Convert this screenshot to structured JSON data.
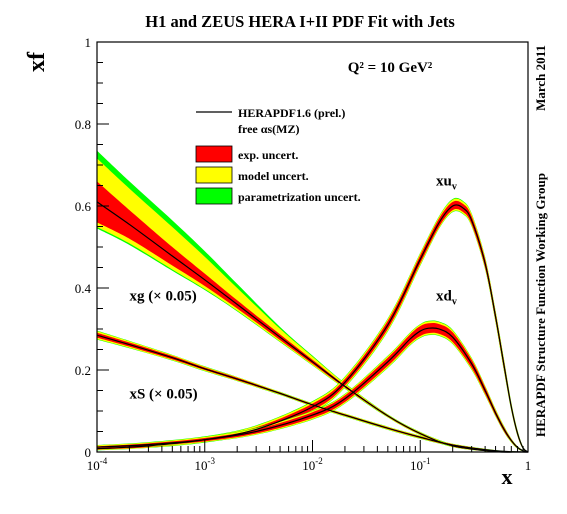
{
  "chart_data": {
    "type": "line",
    "title": "H1 and ZEUS HERA I+II PDF Fit with Jets",
    "ylabel": "xf",
    "xlabel": "x",
    "x_scale": "log",
    "xlim": [
      0.0001,
      1
    ],
    "ylim": [
      0,
      1
    ],
    "x_ticks": [
      "10^-4",
      "10^-3",
      "10^-2",
      "10^-1",
      "1"
    ],
    "y_ticks": [
      "0",
      "0.2",
      "0.4",
      "0.6",
      "0.8",
      "1"
    ],
    "scale_label": "Q² = 10 GeV²",
    "side_labels": {
      "date": "March 2011",
      "group": "HERAPDF Structure Function Working Group"
    },
    "legend": {
      "placement": "upper-center",
      "entries": [
        {
          "kind": "line",
          "label": "HERAPDF1.6 (prel.)",
          "color": "#000000"
        },
        {
          "kind": "text",
          "label": "free αs(MZ)"
        },
        {
          "kind": "box",
          "label": "exp. uncert.",
          "color": "#ff0000"
        },
        {
          "kind": "box",
          "label": "model uncert.",
          "color": "#ffff00"
        },
        {
          "kind": "box",
          "label": "parametrization uncert.",
          "color": "#00ff00"
        }
      ]
    },
    "band_colors": {
      "param": "#00ff00",
      "model": "#ffff00",
      "exp": "#ff0000",
      "central": "#000000"
    },
    "series": [
      {
        "name": "xg (× 0.05)",
        "label_pos": {
          "x": 0.0002,
          "y": 0.37
        },
        "x": [
          0.0001,
          0.0002,
          0.0005,
          0.001,
          0.002,
          0.005,
          0.01,
          0.02,
          0.05,
          0.1,
          0.2,
          0.5,
          0.8,
          1
        ],
        "central": [
          0.61,
          0.555,
          0.478,
          0.42,
          0.36,
          0.28,
          0.22,
          0.16,
          0.088,
          0.045,
          0.015,
          0.0008,
          5e-05,
          0
        ],
        "exp_lo": [
          0.56,
          0.52,
          0.455,
          0.405,
          0.35,
          0.273,
          0.215,
          0.157,
          0.086,
          0.043,
          0.013,
          0.0004,
          0,
          0
        ],
        "exp_hi": [
          0.66,
          0.59,
          0.5,
          0.435,
          0.37,
          0.287,
          0.225,
          0.163,
          0.09,
          0.047,
          0.017,
          0.0012,
          0.0001,
          0
        ],
        "band_lo": [
          0.545,
          0.505,
          0.442,
          0.395,
          0.343,
          0.268,
          0.211,
          0.154,
          0.084,
          0.041,
          0.012,
          0.0002,
          0,
          0
        ],
        "band_hi": [
          0.735,
          0.66,
          0.565,
          0.49,
          0.41,
          0.305,
          0.235,
          0.168,
          0.092,
          0.049,
          0.019,
          0.0016,
          0.0002,
          0
        ]
      },
      {
        "name": "xS (× 0.05)",
        "label_pos": {
          "x": 0.0002,
          "y": 0.13
        },
        "x": [
          0.0001,
          0.0002,
          0.0005,
          0.001,
          0.002,
          0.005,
          0.01,
          0.02,
          0.05,
          0.1,
          0.2,
          0.5,
          0.8,
          1
        ],
        "central": [
          0.285,
          0.262,
          0.23,
          0.203,
          0.178,
          0.143,
          0.115,
          0.09,
          0.058,
          0.036,
          0.017,
          0.003,
          0.0005,
          0
        ],
        "exp_lo": [
          0.279,
          0.257,
          0.226,
          0.2,
          0.175,
          0.141,
          0.113,
          0.088,
          0.056,
          0.034,
          0.015,
          0.002,
          0,
          0
        ],
        "exp_hi": [
          0.291,
          0.267,
          0.234,
          0.206,
          0.181,
          0.145,
          0.117,
          0.092,
          0.06,
          0.038,
          0.019,
          0.004,
          0.001,
          0
        ],
        "band_lo": [
          0.274,
          0.253,
          0.223,
          0.197,
          0.173,
          0.139,
          0.111,
          0.086,
          0.054,
          0.032,
          0.014,
          0.0015,
          0,
          0
        ],
        "band_hi": [
          0.296,
          0.271,
          0.237,
          0.209,
          0.183,
          0.147,
          0.119,
          0.094,
          0.062,
          0.04,
          0.02,
          0.0045,
          0.0012,
          0
        ]
      },
      {
        "name": "xu_v",
        "label_pos": {
          "x": 0.14,
          "y": 0.65
        },
        "x": [
          0.0001,
          0.0003,
          0.001,
          0.003,
          0.01,
          0.02,
          0.05,
          0.1,
          0.15,
          0.2,
          0.25,
          0.3,
          0.4,
          0.5,
          0.6,
          0.7,
          0.8,
          0.9,
          1
        ],
        "central": [
          0.008,
          0.015,
          0.03,
          0.055,
          0.11,
          0.17,
          0.31,
          0.47,
          0.56,
          0.6,
          0.595,
          0.565,
          0.46,
          0.33,
          0.21,
          0.11,
          0.045,
          0.01,
          0
        ],
        "exp_lo": [
          0.006,
          0.012,
          0.026,
          0.05,
          0.102,
          0.162,
          0.3,
          0.46,
          0.55,
          0.59,
          0.585,
          0.555,
          0.45,
          0.32,
          0.2,
          0.103,
          0.04,
          0.008,
          0
        ],
        "exp_hi": [
          0.01,
          0.018,
          0.034,
          0.06,
          0.118,
          0.178,
          0.32,
          0.48,
          0.57,
          0.61,
          0.605,
          0.575,
          0.47,
          0.34,
          0.22,
          0.117,
          0.05,
          0.012,
          0
        ],
        "band_lo": [
          0.004,
          0.01,
          0.023,
          0.046,
          0.097,
          0.157,
          0.294,
          0.454,
          0.545,
          0.585,
          0.58,
          0.55,
          0.445,
          0.315,
          0.195,
          0.1,
          0.038,
          0.007,
          0
        ],
        "band_hi": [
          0.013,
          0.021,
          0.038,
          0.065,
          0.124,
          0.184,
          0.326,
          0.486,
          0.576,
          0.617,
          0.612,
          0.582,
          0.476,
          0.345,
          0.225,
          0.121,
          0.053,
          0.013,
          0
        ]
      },
      {
        "name": "xd_v",
        "label_pos": {
          "x": 0.14,
          "y": 0.37
        },
        "x": [
          0.0001,
          0.0003,
          0.001,
          0.003,
          0.01,
          0.02,
          0.05,
          0.08,
          0.1,
          0.12,
          0.15,
          0.2,
          0.3,
          0.4,
          0.5,
          0.6,
          0.7,
          0.8,
          0.9,
          1
        ],
        "central": [
          0.012,
          0.018,
          0.03,
          0.05,
          0.09,
          0.13,
          0.22,
          0.275,
          0.295,
          0.302,
          0.3,
          0.28,
          0.215,
          0.15,
          0.095,
          0.055,
          0.028,
          0.011,
          0.003,
          0
        ],
        "exp_lo": [
          0.01,
          0.015,
          0.026,
          0.045,
          0.083,
          0.122,
          0.21,
          0.264,
          0.283,
          0.29,
          0.288,
          0.268,
          0.205,
          0.142,
          0.089,
          0.05,
          0.025,
          0.009,
          0.002,
          0
        ],
        "exp_hi": [
          0.014,
          0.021,
          0.034,
          0.055,
          0.097,
          0.138,
          0.23,
          0.286,
          0.307,
          0.314,
          0.312,
          0.292,
          0.225,
          0.158,
          0.101,
          0.06,
          0.031,
          0.013,
          0.004,
          0
        ],
        "band_lo": [
          0.008,
          0.013,
          0.024,
          0.042,
          0.079,
          0.118,
          0.205,
          0.259,
          0.278,
          0.285,
          0.283,
          0.263,
          0.2,
          0.138,
          0.086,
          0.048,
          0.023,
          0.008,
          0.0015,
          0
        ],
        "band_hi": [
          0.017,
          0.024,
          0.038,
          0.059,
          0.101,
          0.142,
          0.235,
          0.291,
          0.312,
          0.32,
          0.318,
          0.298,
          0.23,
          0.162,
          0.105,
          0.063,
          0.033,
          0.014,
          0.0045,
          0
        ]
      }
    ]
  }
}
